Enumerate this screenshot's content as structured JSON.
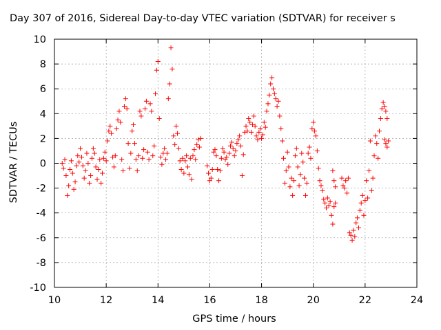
{
  "chart_data": {
    "type": "scatter",
    "title": "Day 307 of 2016, Sidereal Day-to-day VTEC variation (SDTVAR) for receiver s",
    "xlabel": "GPS time / hours",
    "ylabel": "SDTVAR / TECUs",
    "xlim": [
      10,
      24
    ],
    "ylim": [
      -10,
      10
    ],
    "xticks": [
      10,
      12,
      14,
      16,
      18,
      20,
      22,
      24
    ],
    "yticks": [
      -10,
      -8,
      -6,
      -4,
      -2,
      0,
      2,
      4,
      6,
      8,
      10
    ],
    "grid": true,
    "marker": "plus",
    "color": "#ff0000",
    "series": [
      {
        "values": [
          [
            10.3,
            0.0
          ],
          [
            10.35,
            -0.4
          ],
          [
            10.4,
            0.3
          ],
          [
            10.45,
            -1.0
          ],
          [
            10.5,
            -2.6
          ],
          [
            10.55,
            -1.8
          ],
          [
            10.6,
            -0.5
          ],
          [
            10.65,
            0.2
          ],
          [
            10.7,
            -0.8
          ],
          [
            10.75,
            -2.1
          ],
          [
            10.8,
            -1.5
          ],
          [
            10.85,
            -0.2
          ],
          [
            10.9,
            0.6
          ],
          [
            10.95,
            0.1
          ],
          [
            11.0,
            1.2
          ],
          [
            11.05,
            0.5
          ],
          [
            11.1,
            -0.2
          ],
          [
            11.15,
            -1.2
          ],
          [
            11.2,
            -0.6
          ],
          [
            11.25,
            0.8
          ],
          [
            11.3,
            0.0
          ],
          [
            11.35,
            -1.6
          ],
          [
            11.4,
            -1.0
          ],
          [
            11.45,
            0.4
          ],
          [
            11.5,
            1.2
          ],
          [
            11.55,
            0.8
          ],
          [
            11.6,
            -0.3
          ],
          [
            11.65,
            -1.3
          ],
          [
            11.7,
            -0.5
          ],
          [
            11.75,
            0.3
          ],
          [
            11.8,
            -1.6
          ],
          [
            11.85,
            -0.8
          ],
          [
            11.9,
            0.4
          ],
          [
            11.95,
            0.9
          ],
          [
            12.0,
            0.2
          ],
          [
            12.05,
            1.8
          ],
          [
            12.1,
            2.6
          ],
          [
            12.15,
            3.0
          ],
          [
            12.2,
            2.4
          ],
          [
            12.25,
            0.5
          ],
          [
            12.3,
            -0.3
          ],
          [
            12.35,
            0.6
          ],
          [
            12.4,
            2.8
          ],
          [
            12.45,
            3.5
          ],
          [
            12.5,
            4.2
          ],
          [
            12.55,
            3.3
          ],
          [
            12.6,
            0.3
          ],
          [
            12.65,
            -0.6
          ],
          [
            12.7,
            4.6
          ],
          [
            12.75,
            5.2
          ],
          [
            12.8,
            4.4
          ],
          [
            12.85,
            1.6
          ],
          [
            12.9,
            -0.4
          ],
          [
            12.95,
            0.8
          ],
          [
            13.0,
            2.6
          ],
          [
            13.05,
            3.1
          ],
          [
            13.1,
            1.6
          ],
          [
            13.15,
            0.3
          ],
          [
            13.2,
            -0.6
          ],
          [
            13.25,
            0.6
          ],
          [
            13.3,
            4.2
          ],
          [
            13.35,
            3.8
          ],
          [
            13.4,
            0.4
          ],
          [
            13.45,
            1.1
          ],
          [
            13.5,
            4.4
          ],
          [
            13.55,
            5.0
          ],
          [
            13.6,
            0.9
          ],
          [
            13.65,
            0.3
          ],
          [
            13.7,
            4.8
          ],
          [
            13.75,
            4.2
          ],
          [
            13.8,
            0.6
          ],
          [
            13.85,
            1.4
          ],
          [
            13.9,
            5.6
          ],
          [
            13.95,
            7.5
          ],
          [
            14.0,
            8.2
          ],
          [
            14.05,
            3.6
          ],
          [
            14.1,
            0.5
          ],
          [
            14.15,
            -0.1
          ],
          [
            14.2,
            0.8
          ],
          [
            14.25,
            1.2
          ],
          [
            14.3,
            0.3
          ],
          [
            14.35,
            0.8
          ],
          [
            14.4,
            5.2
          ],
          [
            14.45,
            6.4
          ],
          [
            14.5,
            9.3
          ],
          [
            14.55,
            7.6
          ],
          [
            14.6,
            2.2
          ],
          [
            14.65,
            1.5
          ],
          [
            14.7,
            3.0
          ],
          [
            14.75,
            2.4
          ],
          [
            14.8,
            1.2
          ],
          [
            14.85,
            0.2
          ],
          [
            14.9,
            -0.5
          ],
          [
            14.95,
            0.4
          ],
          [
            15.0,
            -0.8
          ],
          [
            15.05,
            0.2
          ],
          [
            15.1,
            0.6
          ],
          [
            15.15,
            -0.3
          ],
          [
            15.2,
            -0.9
          ],
          [
            15.25,
            0.4
          ],
          [
            15.3,
            -1.3
          ],
          [
            15.35,
            0.6
          ],
          [
            15.4,
            1.1
          ],
          [
            15.45,
            0.3
          ],
          [
            15.5,
            1.5
          ],
          [
            15.55,
            1.9
          ],
          [
            15.6,
            1.3
          ],
          [
            15.65,
            2.0
          ],
          [
            15.9,
            -0.2
          ],
          [
            15.95,
            -0.8
          ],
          [
            16.0,
            -1.4
          ],
          [
            16.05,
            -1.2
          ],
          [
            16.1,
            -0.5
          ],
          [
            16.15,
            0.9
          ],
          [
            16.2,
            1.1
          ],
          [
            16.25,
            0.6
          ],
          [
            16.3,
            -0.5
          ],
          [
            16.35,
            -1.4
          ],
          [
            16.4,
            -0.6
          ],
          [
            16.45,
            0.4
          ],
          [
            16.5,
            1.2
          ],
          [
            16.55,
            0.9
          ],
          [
            16.6,
            0.3
          ],
          [
            16.65,
            0.5
          ],
          [
            16.7,
            -0.1
          ],
          [
            16.75,
            0.8
          ],
          [
            16.8,
            1.4
          ],
          [
            16.85,
            1.7
          ],
          [
            16.9,
            1.2
          ],
          [
            16.95,
            0.6
          ],
          [
            17.0,
            1.0
          ],
          [
            17.05,
            1.6
          ],
          [
            17.1,
            1.9
          ],
          [
            17.15,
            2.2
          ],
          [
            17.2,
            1.4
          ],
          [
            17.25,
            -1.0
          ],
          [
            17.3,
            0.7
          ],
          [
            17.35,
            2.5
          ],
          [
            17.4,
            3.0
          ],
          [
            17.45,
            2.6
          ],
          [
            17.5,
            3.6
          ],
          [
            17.55,
            3.3
          ],
          [
            17.6,
            2.5
          ],
          [
            17.65,
            3.1
          ],
          [
            17.7,
            3.8
          ],
          [
            17.75,
            3.0
          ],
          [
            17.8,
            2.2
          ],
          [
            17.85,
            1.9
          ],
          [
            17.9,
            2.5
          ],
          [
            17.95,
            2.8
          ],
          [
            18.0,
            2.0
          ],
          [
            18.05,
            2.3
          ],
          [
            18.1,
            3.3
          ],
          [
            18.15,
            2.9
          ],
          [
            18.2,
            4.2
          ],
          [
            18.25,
            4.8
          ],
          [
            18.3,
            5.5
          ],
          [
            18.35,
            6.4
          ],
          [
            18.4,
            6.9
          ],
          [
            18.45,
            6.0
          ],
          [
            18.5,
            5.6
          ],
          [
            18.55,
            5.2
          ],
          [
            18.6,
            4.6
          ],
          [
            18.65,
            5.0
          ],
          [
            18.7,
            3.8
          ],
          [
            18.75,
            2.8
          ],
          [
            18.8,
            1.8
          ],
          [
            18.85,
            0.4
          ],
          [
            18.9,
            -1.6
          ],
          [
            18.95,
            -0.6
          ],
          [
            19.0,
            0.9
          ],
          [
            19.05,
            -0.3
          ],
          [
            19.1,
            -1.9
          ],
          [
            19.15,
            -1.2
          ],
          [
            19.2,
            -2.6
          ],
          [
            19.25,
            -1.4
          ],
          [
            19.3,
            0.6
          ],
          [
            19.35,
            1.2
          ],
          [
            19.4,
            -0.3
          ],
          [
            19.45,
            -1.8
          ],
          [
            19.5,
            -0.9
          ],
          [
            19.55,
            0.8
          ],
          [
            19.6,
            0.1
          ],
          [
            19.65,
            -1.2
          ],
          [
            19.7,
            -2.6
          ],
          [
            19.75,
            -1.6
          ],
          [
            19.8,
            0.8
          ],
          [
            19.85,
            1.3
          ],
          [
            19.9,
            0.4
          ],
          [
            19.95,
            2.8
          ],
          [
            20.0,
            3.3
          ],
          [
            20.05,
            2.6
          ],
          [
            20.1,
            2.2
          ],
          [
            20.15,
            1.0
          ],
          [
            20.2,
            -0.4
          ],
          [
            20.25,
            -1.4
          ],
          [
            20.3,
            -1.8
          ],
          [
            20.35,
            -2.2
          ],
          [
            20.4,
            -2.9
          ],
          [
            20.45,
            -3.2
          ],
          [
            20.5,
            -3.6
          ],
          [
            20.55,
            -2.8
          ],
          [
            20.6,
            -3.4
          ],
          [
            20.65,
            -3.1
          ],
          [
            20.7,
            -4.2
          ],
          [
            20.75,
            -4.9
          ],
          [
            20.8,
            -3.5
          ],
          [
            20.85,
            -3.2
          ],
          [
            20.75,
            -0.6
          ],
          [
            20.8,
            -1.4
          ],
          [
            20.85,
            -1.9
          ],
          [
            21.1,
            -1.2
          ],
          [
            21.15,
            -1.8
          ],
          [
            21.2,
            -2.0
          ],
          [
            21.25,
            -1.4
          ],
          [
            21.3,
            -2.4
          ],
          [
            21.35,
            -1.2
          ],
          [
            21.4,
            -5.6
          ],
          [
            21.45,
            -5.8
          ],
          [
            21.5,
            -6.2
          ],
          [
            21.55,
            -5.4
          ],
          [
            21.6,
            -5.9
          ],
          [
            21.65,
            -4.8
          ],
          [
            21.7,
            -4.4
          ],
          [
            21.75,
            -5.2
          ],
          [
            21.8,
            -3.8
          ],
          [
            21.85,
            -3.2
          ],
          [
            21.9,
            -2.6
          ],
          [
            21.95,
            -4.2
          ],
          [
            22.0,
            -3.0
          ],
          [
            22.05,
            -1.4
          ],
          [
            22.1,
            -2.8
          ],
          [
            22.15,
            -0.6
          ],
          [
            22.2,
            1.8
          ],
          [
            22.25,
            -2.2
          ],
          [
            22.3,
            -1.2
          ],
          [
            22.35,
            0.6
          ],
          [
            22.4,
            2.2
          ],
          [
            22.45,
            1.6
          ],
          [
            22.5,
            0.4
          ],
          [
            22.55,
            2.6
          ],
          [
            22.6,
            3.6
          ],
          [
            22.65,
            4.4
          ],
          [
            22.7,
            4.9
          ],
          [
            22.75,
            4.6
          ],
          [
            22.8,
            4.2
          ],
          [
            22.85,
            3.6
          ],
          [
            22.75,
            1.9
          ],
          [
            22.8,
            1.6
          ],
          [
            22.85,
            1.3
          ],
          [
            22.9,
            1.8
          ]
        ]
      }
    ]
  }
}
